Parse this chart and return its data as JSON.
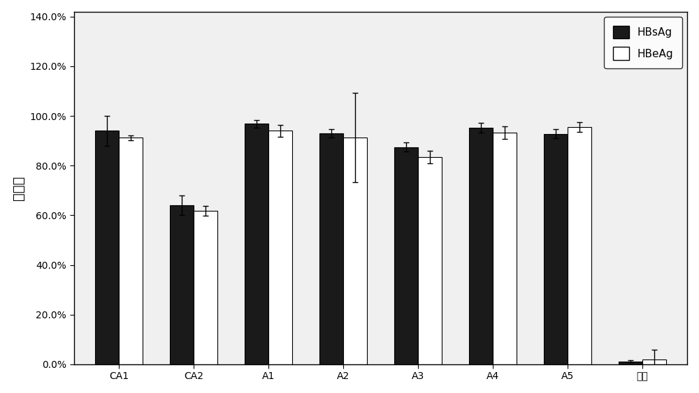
{
  "categories": [
    "CA1",
    "CA2",
    "A1",
    "A2",
    "A3",
    "A4",
    "A5",
    "对照"
  ],
  "hbsag_values": [
    0.94,
    0.64,
    0.968,
    0.93,
    0.875,
    0.952,
    0.928,
    0.012
  ],
  "hbeag_values": [
    0.912,
    0.618,
    0.94,
    0.912,
    0.835,
    0.932,
    0.955,
    0.02
  ],
  "hbsag_errors": [
    0.06,
    0.04,
    0.015,
    0.018,
    0.018,
    0.02,
    0.018,
    0.005
  ],
  "hbeag_errors": [
    0.01,
    0.02,
    0.025,
    0.18,
    0.025,
    0.025,
    0.02,
    0.04
  ],
  "hbsag_color": "#1a1a1a",
  "hbeag_color": "#ffffff",
  "hbsag_edgecolor": "#000000",
  "hbeag_edgecolor": "#000000",
  "ylabel": "抑制率",
  "ylim": [
    0.0,
    1.42
  ],
  "yticks": [
    0.0,
    0.2,
    0.4,
    0.6,
    0.8,
    1.0,
    1.2,
    1.4
  ],
  "ytick_labels": [
    "0.0%",
    "20.0%",
    "40.0%",
    "60.0%",
    "80.0%",
    "100.0%",
    "120.0%",
    "140.0%"
  ],
  "legend_hbsag": "HBsAg",
  "legend_hbeag": "HBeAg",
  "bar_width": 0.32,
  "background_color": "#f0f0f0",
  "figure_bg": "#ffffff"
}
